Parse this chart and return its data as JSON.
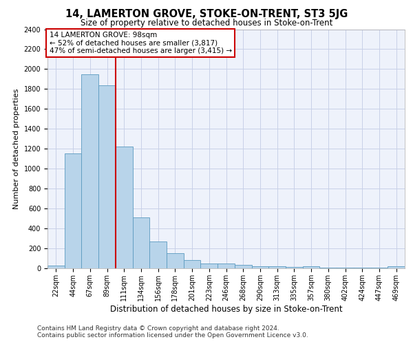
{
  "title": "14, LAMERTON GROVE, STOKE-ON-TRENT, ST3 5JG",
  "subtitle": "Size of property relative to detached houses in Stoke-on-Trent",
  "xlabel": "Distribution of detached houses by size in Stoke-on-Trent",
  "ylabel": "Number of detached properties",
  "categories": [
    "22sqm",
    "44sqm",
    "67sqm",
    "89sqm",
    "111sqm",
    "134sqm",
    "156sqm",
    "178sqm",
    "201sqm",
    "223sqm",
    "246sqm",
    "268sqm",
    "290sqm",
    "313sqm",
    "335sqm",
    "357sqm",
    "380sqm",
    "402sqm",
    "424sqm",
    "447sqm",
    "469sqm"
  ],
  "values": [
    30,
    1150,
    1950,
    1840,
    1220,
    510,
    270,
    155,
    85,
    50,
    45,
    35,
    20,
    22,
    12,
    20,
    10,
    10,
    5,
    5,
    20
  ],
  "bar_color": "#b8d4ea",
  "bar_edge_color": "#5a9abf",
  "background_color": "#ffffff",
  "plot_bg_color": "#eef2fb",
  "grid_color": "#c8d0e8",
  "vline_x": 3.5,
  "vline_color": "#cc0000",
  "annotation_line1": "14 LAMERTON GROVE: 98sqm",
  "annotation_line2": "← 52% of detached houses are smaller (3,817)",
  "annotation_line3": "47% of semi-detached houses are larger (3,415) →",
  "annotation_box_color": "#cc0000",
  "annotation_text_fontsize": 7.5,
  "ylim": [
    0,
    2400
  ],
  "yticks": [
    0,
    200,
    400,
    600,
    800,
    1000,
    1200,
    1400,
    1600,
    1800,
    2000,
    2200,
    2400
  ],
  "footer_line1": "Contains HM Land Registry data © Crown copyright and database right 2024.",
  "footer_line2": "Contains public sector information licensed under the Open Government Licence v3.0.",
  "title_fontsize": 10.5,
  "subtitle_fontsize": 8.5,
  "xlabel_fontsize": 8.5,
  "ylabel_fontsize": 8,
  "tick_fontsize": 7,
  "footer_fontsize": 6.5
}
